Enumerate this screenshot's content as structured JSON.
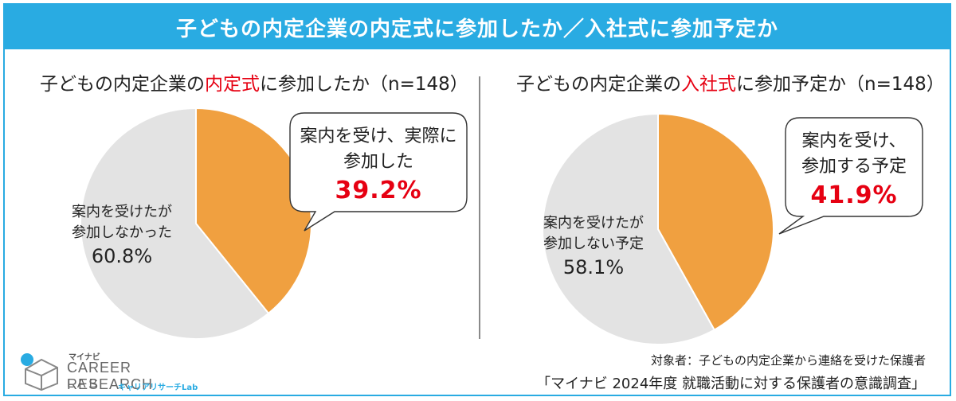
{
  "header": {
    "title": "子どもの内定企業の内定式に参加したか／入社式に参加予定か"
  },
  "left": {
    "title_pre": "子どもの内定企業の",
    "title_hl": "内定式",
    "title_post": "に参加したか（n=148）",
    "callout_line1": "案内を受け、実際に",
    "callout_line2": "参加した",
    "callout_pct": "39.2%",
    "other_line1": "案内を受けたが",
    "other_line2": "参加しなかった",
    "other_pct": "60.8%"
  },
  "right": {
    "title_pre": "子どもの内定企業の",
    "title_hl": "入社式",
    "title_post": "に参加予定か（n=148）",
    "callout_line1": "案内を受け、",
    "callout_line2": "参加する予定",
    "callout_pct": "41.9%",
    "other_line1": "案内を受けたが",
    "other_line2": "参加しない予定",
    "other_pct": "58.1%"
  },
  "chart_data": [
    {
      "type": "pie",
      "title": "子どもの内定企業の内定式に参加したか（n=148）",
      "categories": [
        "案内を受け、実際に参加した",
        "案内を受けたが参加しなかった"
      ],
      "values": [
        39.2,
        60.8
      ],
      "colors": [
        "#F0A040",
        "#E3E3E3"
      ]
    },
    {
      "type": "pie",
      "title": "子どもの内定企業の入社式に参加予定か（n=148）",
      "categories": [
        "案内を受け、参加する予定",
        "案内を受けたが参加しない予定"
      ],
      "values": [
        41.9,
        58.1
      ],
      "colors": [
        "#F0A040",
        "#E3E3E3"
      ]
    }
  ],
  "footer": {
    "source_note": "対象者：子どもの内定企業から連絡を受けた保護者",
    "survey_name": "「マイナビ 2024年度 就職活動に対する保護者の意識調査」"
  },
  "logo": {
    "brand": "マイナビ",
    "line1": "CAREER RESEARCH",
    "line2": "LAB",
    "kana": "キャリアリサーチLab",
    "accent_color": "#29ABE2"
  }
}
